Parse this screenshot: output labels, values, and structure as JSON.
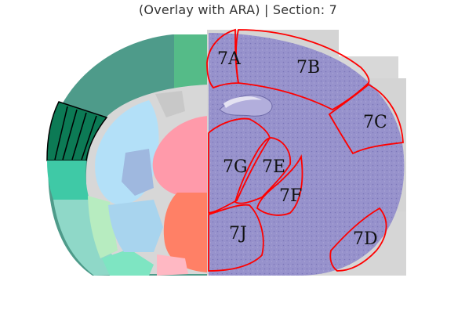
{
  "title": "(Overlay with ARA) | Section: 7",
  "colors": {
    "outline": "#ff0000",
    "nissl": "#8f8ac8",
    "panel": "#d4d4d4",
    "cortex_dark": "#4e9b8a",
    "cortex_green": "#55bb88",
    "cortex_highlight": "#0c7a55",
    "striatum_blue": "#b3e0f8",
    "thalamus_pink": "#ff9aaa",
    "hypothalamus_orange": "#ff8066",
    "olfactory_mint": "#8fd8c8"
  },
  "regions": [
    {
      "id": "7A",
      "label": "7A"
    },
    {
      "id": "7B",
      "label": "7B"
    },
    {
      "id": "7C",
      "label": "7C"
    },
    {
      "id": "7D",
      "label": "7D"
    },
    {
      "id": "7E",
      "label": "7E"
    },
    {
      "id": "7F",
      "label": "7F"
    },
    {
      "id": "7G",
      "label": "7G"
    },
    {
      "id": "7J",
      "label": "7J"
    }
  ]
}
